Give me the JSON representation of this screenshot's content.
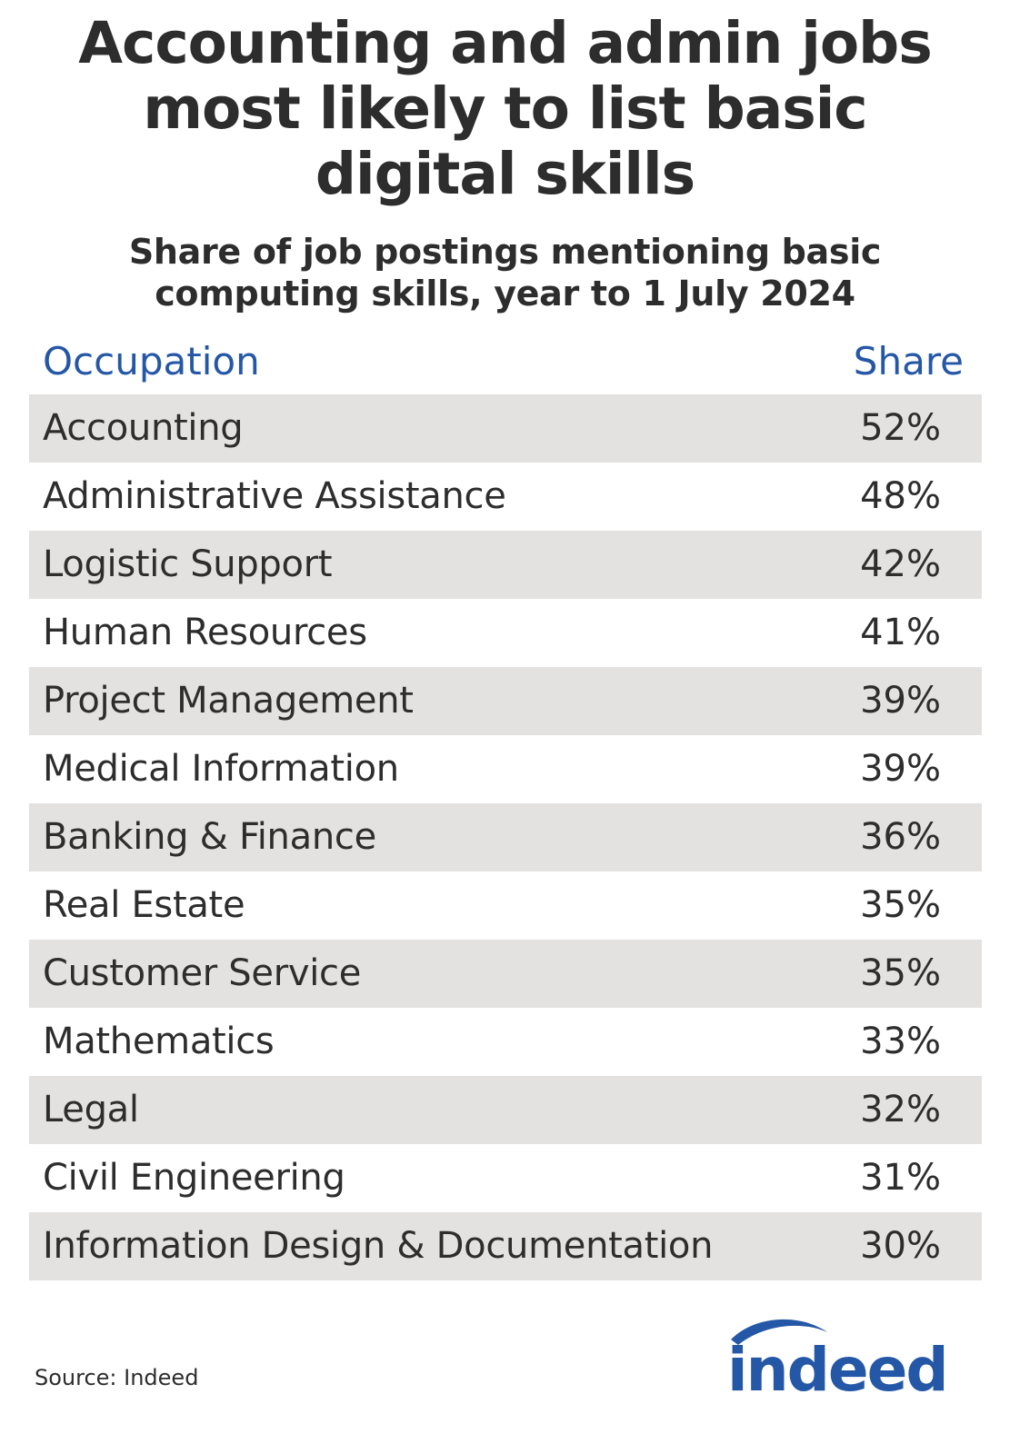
{
  "chart_data": {
    "type": "table",
    "title": "Accounting and admin jobs most likely to list basic digital skills",
    "subtitle": "Share of job postings mentioning basic computing skills, year to 1 July 2024",
    "columns": [
      "Occupation",
      "Share"
    ],
    "rows": [
      {
        "occupation": "Accounting",
        "share": "52%"
      },
      {
        "occupation": "Administrative Assistance",
        "share": "48%"
      },
      {
        "occupation": "Logistic Support",
        "share": "42%"
      },
      {
        "occupation": "Human Resources",
        "share": "41%"
      },
      {
        "occupation": "Project Management",
        "share": "39%"
      },
      {
        "occupation": "Medical Information",
        "share": "39%"
      },
      {
        "occupation": "Banking & Finance",
        "share": "36%"
      },
      {
        "occupation": "Real Estate",
        "share": "35%"
      },
      {
        "occupation": "Customer Service",
        "share": "35%"
      },
      {
        "occupation": "Mathematics",
        "share": "33%"
      },
      {
        "occupation": "Legal",
        "share": "32%"
      },
      {
        "occupation": "Civil Engineering",
        "share": "31%"
      },
      {
        "occupation": "Information Design & Documentation",
        "share": "30%"
      }
    ],
    "source": "Source: Indeed"
  },
  "logo": {
    "text": "indeed",
    "color": "#2557a7"
  },
  "colors": {
    "text": "#2d2d2d",
    "header": "#2557a7",
    "shaded_row": "#e4e2e0"
  }
}
